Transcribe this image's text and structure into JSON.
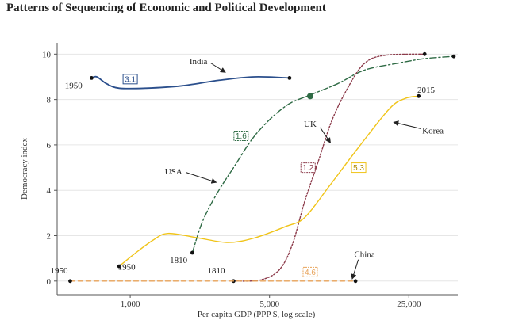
{
  "title": "Patterns of Sequencing of Economic and Political Development",
  "chart_data": {
    "type": "line",
    "xlabel": "Per capita GDP (PPP $, log scale)",
    "ylabel": "Democracy index",
    "x_scale": "log",
    "xlim": [
      430,
      44000
    ],
    "ylim": [
      -0.6,
      10.5
    ],
    "x_ticks": [
      {
        "value": 1000,
        "label": "1,000"
      },
      {
        "value": 5000,
        "label": "5,000"
      },
      {
        "value": 25000,
        "label": "25,000"
      }
    ],
    "y_ticks": [
      0,
      2,
      4,
      6,
      8,
      10
    ],
    "series": [
      {
        "name": "India",
        "color": "#2b4f8c",
        "dash": "",
        "points": [
          [
            640,
            8.95
          ],
          [
            680,
            9.0
          ],
          [
            760,
            8.7
          ],
          [
            880,
            8.5
          ],
          [
            1200,
            8.5
          ],
          [
            1800,
            8.6
          ],
          [
            2800,
            8.85
          ],
          [
            4200,
            9.0
          ],
          [
            6300,
            8.95
          ]
        ],
        "markers": [
          [
            640,
            8.95
          ],
          [
            6300,
            8.95
          ]
        ],
        "highlight": null,
        "rate": "3.1",
        "rate_at": [
          1000,
          8.9
        ]
      },
      {
        "name": "USA",
        "color": "#2f6b45",
        "dash": "8,3,2,3",
        "points": [
          [
            2050,
            1.25
          ],
          [
            2300,
            2.6
          ],
          [
            2700,
            3.8
          ],
          [
            3300,
            5.0
          ],
          [
            4300,
            6.5
          ],
          [
            6000,
            7.7
          ],
          [
            8000,
            8.2
          ],
          [
            11000,
            8.7
          ],
          [
            15000,
            9.3
          ],
          [
            22000,
            9.6
          ],
          [
            30000,
            9.8
          ],
          [
            42000,
            9.9
          ]
        ],
        "markers": [
          [
            2050,
            1.25
          ],
          [
            42000,
            9.9
          ]
        ],
        "highlight": [
          8000,
          8.15
        ],
        "rate": "1.6",
        "rate_at": [
          3600,
          6.4
        ]
      },
      {
        "name": "UK",
        "color": "#8c3a4a",
        "dash": "2,2",
        "points": [
          [
            3300,
            0.0
          ],
          [
            4500,
            0.05
          ],
          [
            5600,
            0.5
          ],
          [
            6500,
            1.6
          ],
          [
            7500,
            3.5
          ],
          [
            8800,
            5.3
          ],
          [
            10300,
            7.1
          ],
          [
            12500,
            8.6
          ],
          [
            15000,
            9.6
          ],
          [
            19000,
            9.95
          ],
          [
            30000,
            10.0
          ]
        ],
        "markers": [
          [
            3300,
            0.0
          ],
          [
            30000,
            10.0
          ]
        ],
        "highlight": [
          8300,
          5.0
        ],
        "rate": "1.2",
        "rate_at": [
          7800,
          5.0
        ]
      },
      {
        "name": "Korea",
        "color": "#f0c419",
        "dash": "",
        "points": [
          [
            880,
            0.65
          ],
          [
            1050,
            1.2
          ],
          [
            1300,
            1.8
          ],
          [
            1550,
            2.1
          ],
          [
            2200,
            1.9
          ],
          [
            3100,
            1.7
          ],
          [
            4200,
            1.9
          ],
          [
            6000,
            2.4
          ],
          [
            7500,
            2.8
          ],
          [
            10000,
            4.2
          ],
          [
            14000,
            5.9
          ],
          [
            20000,
            7.6
          ],
          [
            24000,
            8.05
          ],
          [
            28000,
            8.15
          ]
        ],
        "markers": [
          [
            880,
            0.65
          ],
          [
            28000,
            8.15
          ]
        ],
        "highlight": null,
        "rate": "5.3",
        "rate_at": [
          14000,
          5.0
        ]
      },
      {
        "name": "China",
        "color": "#e8a35a",
        "dash": "6,4",
        "points": [
          [
            500,
            0.0
          ],
          [
            13500,
            0.0
          ]
        ],
        "markers": [
          [
            500,
            0.0
          ],
          [
            13500,
            0.0
          ]
        ],
        "highlight": null,
        "rate": "4.6",
        "rate_at": [
          8000,
          0.4
        ]
      }
    ],
    "annotations": [
      {
        "text": "1950",
        "x": 520,
        "y": 8.5,
        "series": "India"
      },
      {
        "text": "India",
        "x": 2200,
        "y": 9.55,
        "series": "India",
        "arrow_to": [
          3000,
          9.2
        ]
      },
      {
        "text": "USA",
        "x": 1650,
        "y": 4.7,
        "series": "USA",
        "arrow_to": [
          2700,
          4.35
        ]
      },
      {
        "text": "1810",
        "x": 1750,
        "y": 0.8,
        "series": "USA"
      },
      {
        "text": "UK",
        "x": 8000,
        "y": 6.8,
        "series": "UK",
        "arrow_to": [
          10100,
          6.1
        ]
      },
      {
        "text": "1810",
        "x": 2700,
        "y": 0.35,
        "series": "UK"
      },
      {
        "text": "Korea",
        "x": 33000,
        "y": 6.5,
        "series": "Korea",
        "arrow_to": [
          21000,
          7.0
        ]
      },
      {
        "text": "2015",
        "x": 30500,
        "y": 8.3,
        "series": "Korea"
      },
      {
        "text": "1950",
        "x": 960,
        "y": 0.5,
        "series": "Korea"
      },
      {
        "text": "China",
        "x": 15000,
        "y": 1.05,
        "series": "China",
        "arrow_to": [
          13000,
          0.1
        ]
      },
      {
        "text": "1950",
        "x": 440,
        "y": 0.35,
        "series": "China"
      }
    ]
  }
}
